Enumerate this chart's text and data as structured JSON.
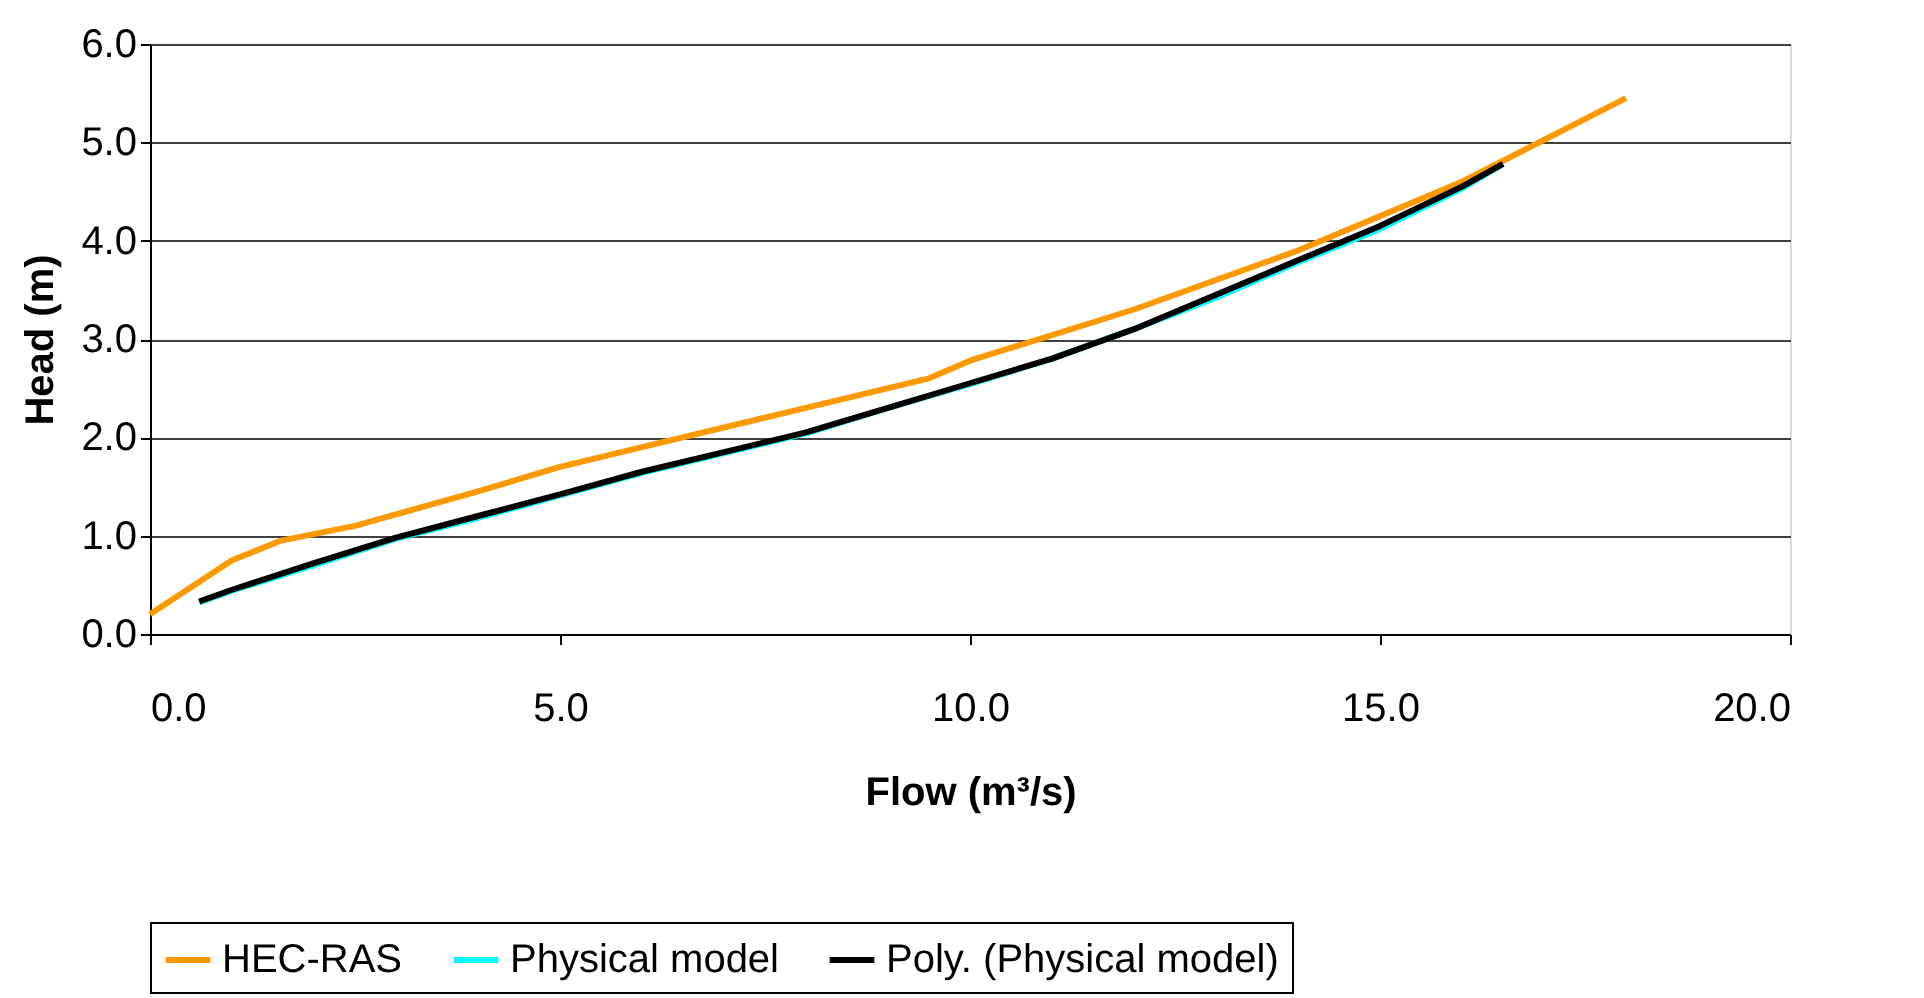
{
  "chart_data": {
    "type": "line",
    "xlabel": "Flow (m³/s)",
    "ylabel": "Head (m)",
    "xlim": [
      0,
      20
    ],
    "ylim": [
      0,
      6
    ],
    "xticks": [
      {
        "value": 0,
        "label": "0.0"
      },
      {
        "value": 5,
        "label": "5.0"
      },
      {
        "value": 10,
        "label": "10.0"
      },
      {
        "value": 15,
        "label": "15.0"
      },
      {
        "value": 20,
        "label": "20.0"
      }
    ],
    "yticks": [
      {
        "value": 0,
        "label": "0.0"
      },
      {
        "value": 1,
        "label": "1.0"
      },
      {
        "value": 2,
        "label": "2.0"
      },
      {
        "value": 3,
        "label": "3.0"
      },
      {
        "value": 4,
        "label": "4.0"
      },
      {
        "value": 5,
        "label": "5.0"
      },
      {
        "value": 6,
        "label": "6.0"
      }
    ],
    "grid": "y",
    "legend": "bottom",
    "marker": "none",
    "line_style": "solid",
    "series": [
      {
        "name": "HEC-RAS",
        "color": "#ff9900",
        "x": [
          0,
          1,
          1.6,
          2.5,
          4,
          5,
          6,
          8,
          9.5,
          10,
          12,
          14,
          16,
          18
        ],
        "values": [
          0.2,
          0.75,
          0.95,
          1.1,
          1.45,
          1.7,
          1.9,
          2.3,
          2.6,
          2.78,
          3.3,
          3.9,
          4.6,
          5.45
        ]
      },
      {
        "name": "Physical model",
        "color": "#00ffff",
        "x": [
          0.6,
          1,
          2,
          3,
          4,
          5,
          6,
          7,
          8,
          9,
          10,
          11,
          12,
          13,
          14,
          15,
          16,
          16.5
        ],
        "values": [
          0.32,
          0.44,
          0.7,
          0.97,
          1.18,
          1.41,
          1.64,
          1.84,
          2.04,
          2.3,
          2.54,
          2.8,
          3.1,
          3.42,
          3.78,
          4.12,
          4.53,
          4.78
        ]
      },
      {
        "name": "Poly. (Physical model)",
        "color": "#000000",
        "x": [
          0.6,
          1,
          2,
          3,
          4,
          5,
          6,
          7,
          8,
          9,
          10,
          11,
          12,
          13,
          14,
          15,
          16,
          16.5
        ],
        "values": [
          0.33,
          0.45,
          0.72,
          0.98,
          1.2,
          1.42,
          1.65,
          1.85,
          2.05,
          2.3,
          2.55,
          2.8,
          3.1,
          3.45,
          3.8,
          4.15,
          4.55,
          4.78
        ]
      }
    ]
  }
}
